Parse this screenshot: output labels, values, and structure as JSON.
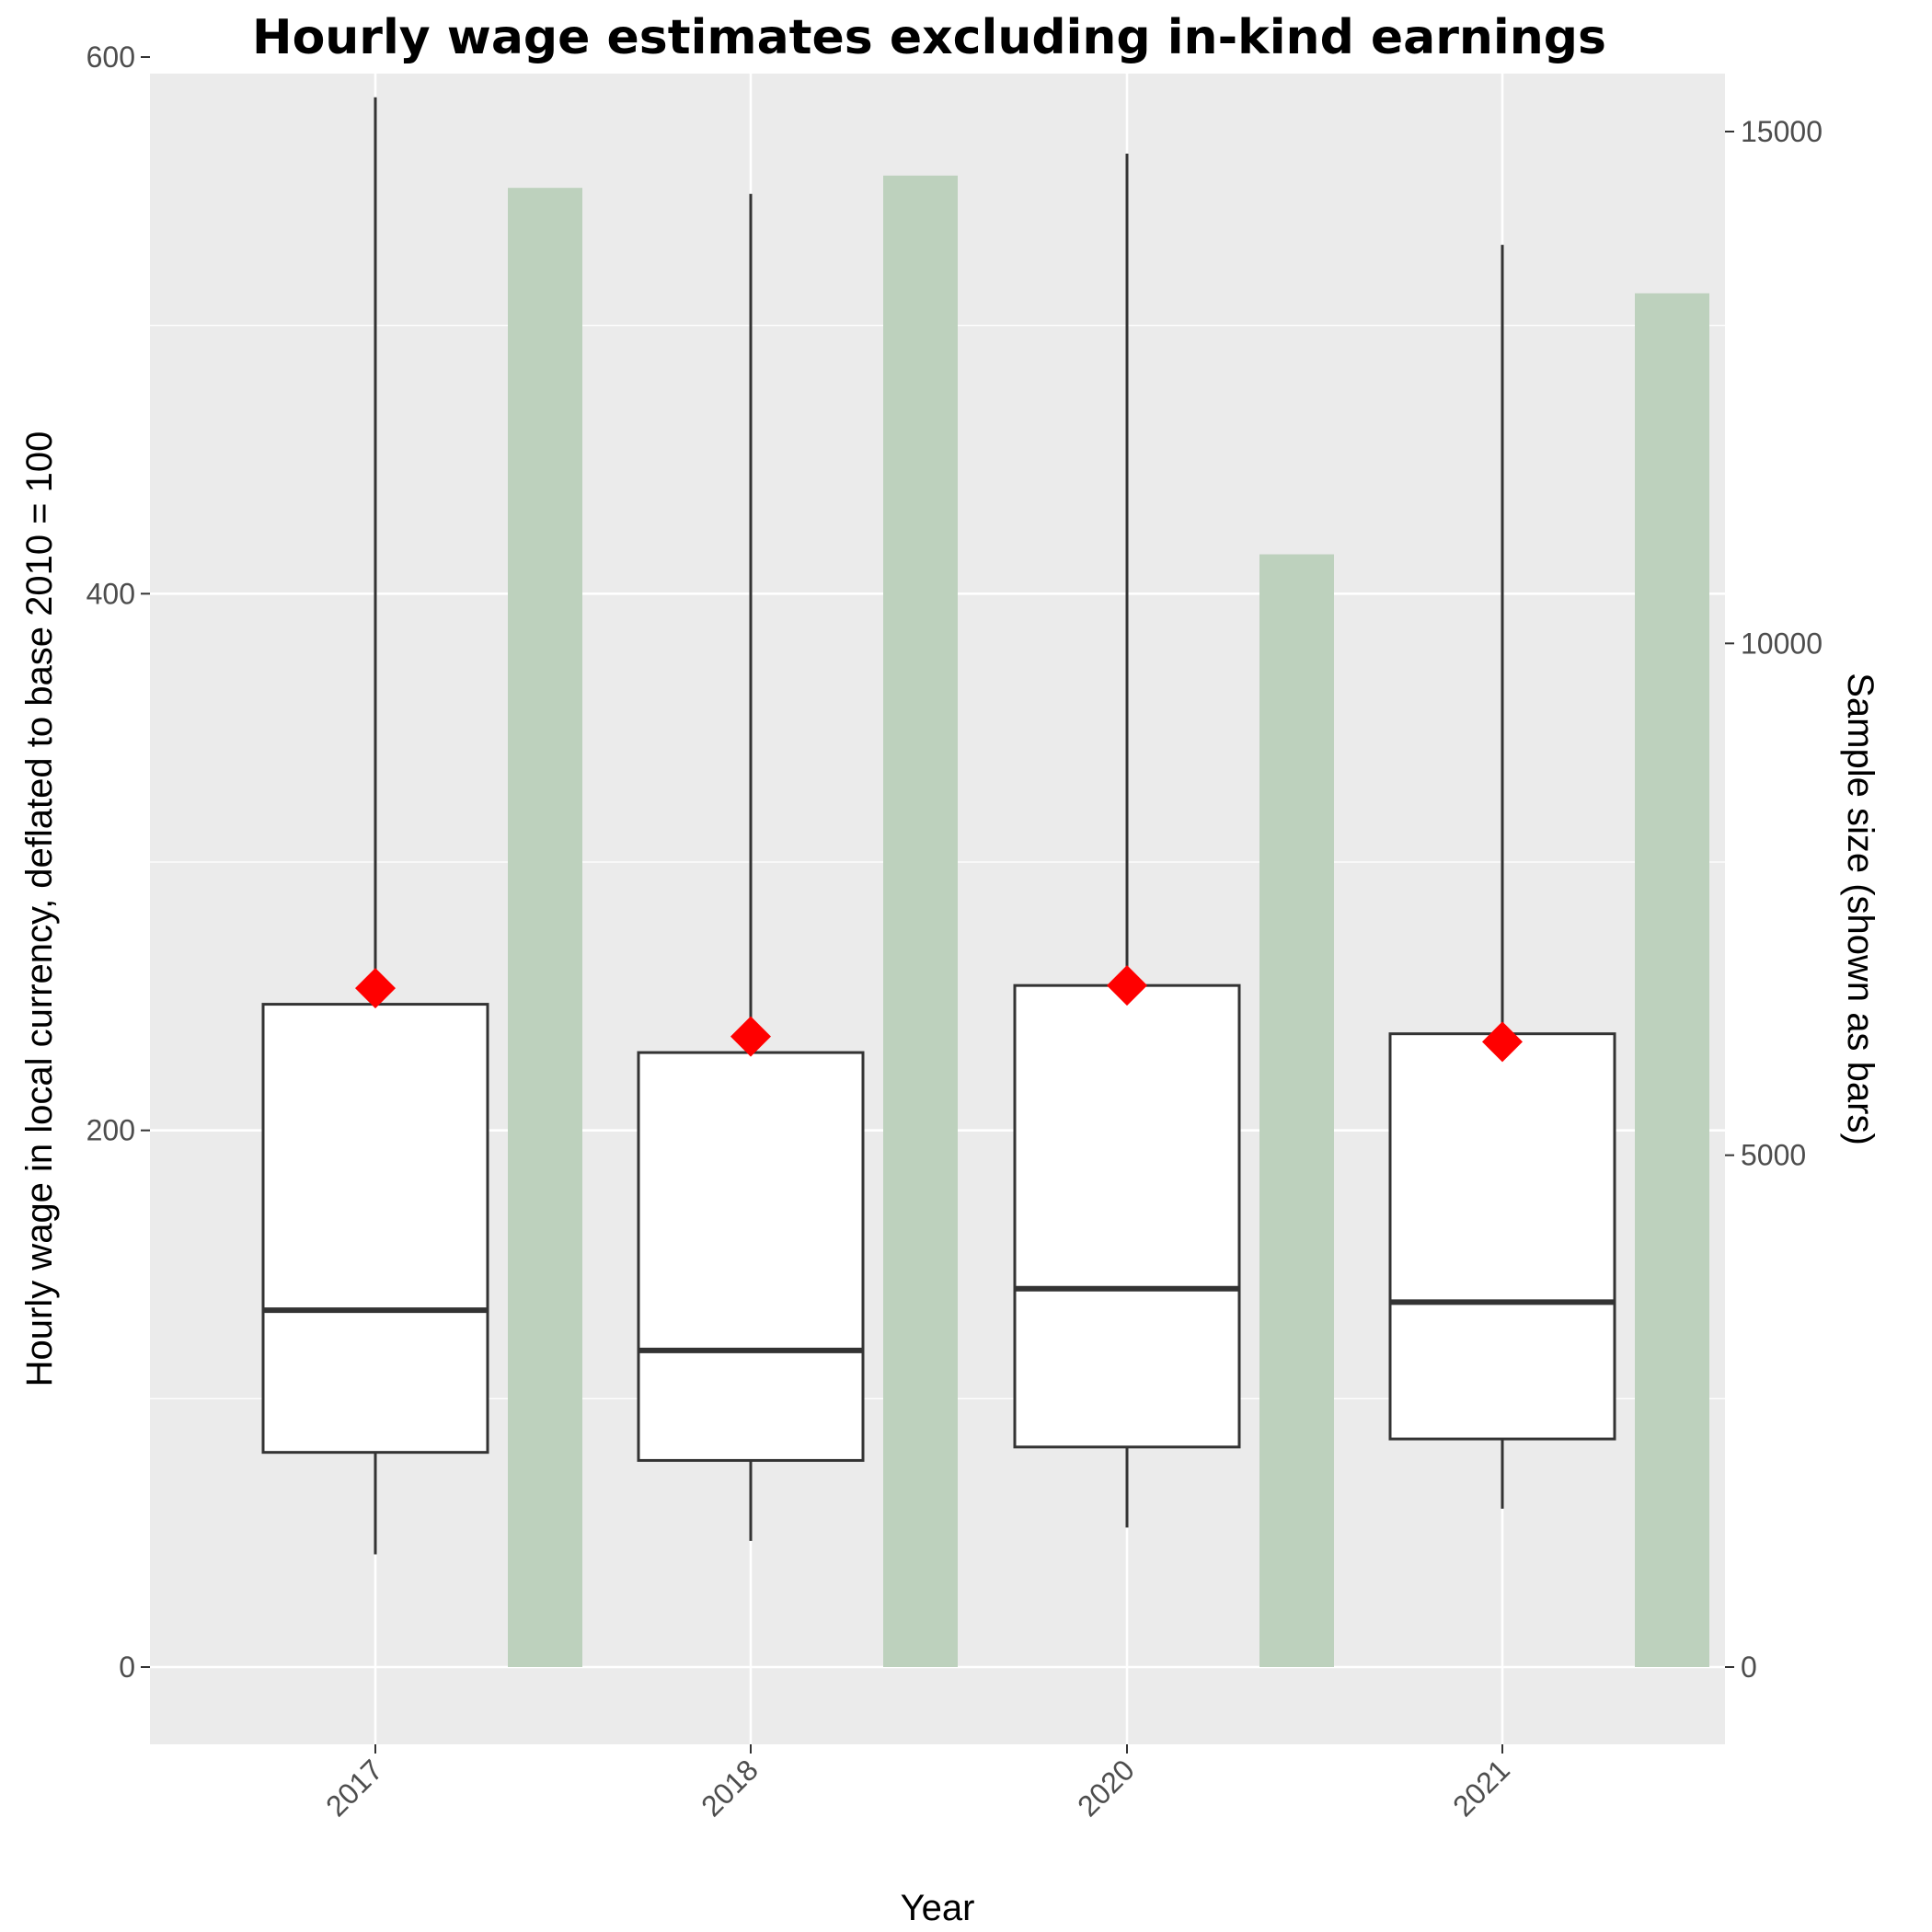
{
  "chart_data": {
    "type": "boxplot",
    "title": "Hourly wage estimates excluding in-kind earnings",
    "xlabel": "Year",
    "ylabel": "Hourly wage in local currency, deflated to base 2010 = 100",
    "y2label": "Sample size (shown as bars)",
    "categories": [
      "2017",
      "2018",
      "2020",
      "2021"
    ],
    "ylim": [
      -29,
      608
    ],
    "y_ticks": [
      0,
      200,
      400,
      600
    ],
    "y2_ticks": [
      0,
      5000,
      10000,
      15000
    ],
    "boxes": [
      {
        "year": "2017",
        "whisker_low": 42,
        "q1": 80,
        "median": 133,
        "q3": 247,
        "whisker_high": 585,
        "mean": 253
      },
      {
        "year": "2018",
        "whisker_low": 47,
        "q1": 77,
        "median": 118,
        "q3": 229,
        "whisker_high": 549,
        "mean": 235
      },
      {
        "year": "2020",
        "whisker_low": 52,
        "q1": 82,
        "median": 141,
        "q3": 254,
        "whisker_high": 564,
        "mean": 254
      },
      {
        "year": "2021",
        "whisker_low": 59,
        "q1": 85,
        "median": 136,
        "q3": 236,
        "whisker_high": 530,
        "mean": 233
      }
    ],
    "sample_sizes": [
      14450,
      14570,
      10870,
      13420
    ],
    "colors": {
      "panel": "#ebebeb",
      "grid": "#ffffff",
      "box_fill": "#ffffff",
      "box_line": "#333333",
      "mean_marker": "#ff0000",
      "bar_fill": "#bdd1bd"
    }
  }
}
